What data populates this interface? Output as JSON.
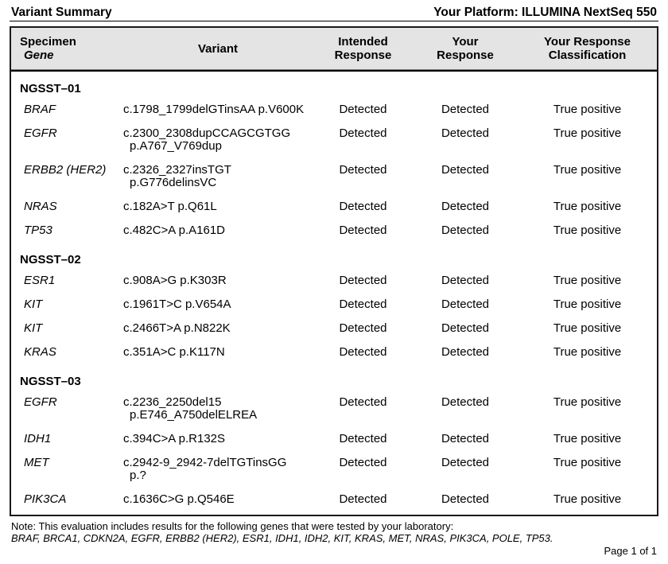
{
  "title": "Variant Summary",
  "platform_label": "Your Platform: ILLUMINA NextSeq 550",
  "table": {
    "headers": {
      "specimen": "Specimen",
      "gene": "Gene",
      "variant": "Variant",
      "intended": [
        "Intended",
        "Response"
      ],
      "your": [
        "Your",
        "Response"
      ],
      "classification": [
        "Your Response",
        "Classification"
      ]
    },
    "groups": [
      {
        "specimen": "NGSST–01",
        "rows": [
          {
            "gene": "BRAF",
            "variant_lines": [
              "c.1798_1799delGTinsAA p.V600K"
            ],
            "intended": "Detected",
            "your": "Detected",
            "classification": "True positive"
          },
          {
            "gene": "EGFR",
            "variant_lines": [
              "c.2300_2308dupCCAGCGTGG",
              "p.A767_V769dup"
            ],
            "intended": "Detected",
            "your": "Detected",
            "classification": "True positive"
          },
          {
            "gene": "ERBB2 (HER2)",
            "variant_lines": [
              "c.2326_2327insTGT",
              "p.G776delinsVC"
            ],
            "intended": "Detected",
            "your": "Detected",
            "classification": "True positive"
          },
          {
            "gene": "NRAS",
            "variant_lines": [
              "c.182A>T p.Q61L"
            ],
            "intended": "Detected",
            "your": "Detected",
            "classification": "True positive"
          },
          {
            "gene": "TP53",
            "variant_lines": [
              "c.482C>A p.A161D"
            ],
            "intended": "Detected",
            "your": "Detected",
            "classification": "True positive"
          }
        ]
      },
      {
        "specimen": "NGSST–02",
        "rows": [
          {
            "gene": "ESR1",
            "variant_lines": [
              "c.908A>G p.K303R"
            ],
            "intended": "Detected",
            "your": "Detected",
            "classification": "True positive"
          },
          {
            "gene": "KIT",
            "variant_lines": [
              "c.1961T>C p.V654A"
            ],
            "intended": "Detected",
            "your": "Detected",
            "classification": "True positive"
          },
          {
            "gene": "KIT",
            "variant_lines": [
              "c.2466T>A p.N822K"
            ],
            "intended": "Detected",
            "your": "Detected",
            "classification": "True positive"
          },
          {
            "gene": "KRAS",
            "variant_lines": [
              "c.351A>C p.K117N"
            ],
            "intended": "Detected",
            "your": "Detected",
            "classification": "True positive"
          }
        ]
      },
      {
        "specimen": "NGSST–03",
        "rows": [
          {
            "gene": "EGFR",
            "variant_lines": [
              "c.2236_2250del15",
              "p.E746_A750delELREA"
            ],
            "intended": "Detected",
            "your": "Detected",
            "classification": "True positive"
          },
          {
            "gene": "IDH1",
            "variant_lines": [
              "c.394C>A p.R132S"
            ],
            "intended": "Detected",
            "your": "Detected",
            "classification": "True positive"
          },
          {
            "gene": "MET",
            "variant_lines": [
              "c.2942-9_2942-7delTGTinsGG",
              "p.?"
            ],
            "intended": "Detected",
            "your": "Detected",
            "classification": "True positive"
          },
          {
            "gene": "PIK3CA",
            "variant_lines": [
              "c.1636C>G p.Q546E"
            ],
            "intended": "Detected",
            "your": "Detected",
            "classification": "True positive"
          }
        ]
      }
    ]
  },
  "footer": {
    "note_line1": "Note: This evaluation includes results for the following genes that were tested by your laboratory:",
    "note_line2": "BRAF, BRCA1, CDKN2A, EGFR, ERBB2 (HER2), ESR1, IDH1, IDH2, KIT, KRAS, MET, NRAS, PIK3CA, POLE, TP53.",
    "page": "Page 1 of 1"
  }
}
